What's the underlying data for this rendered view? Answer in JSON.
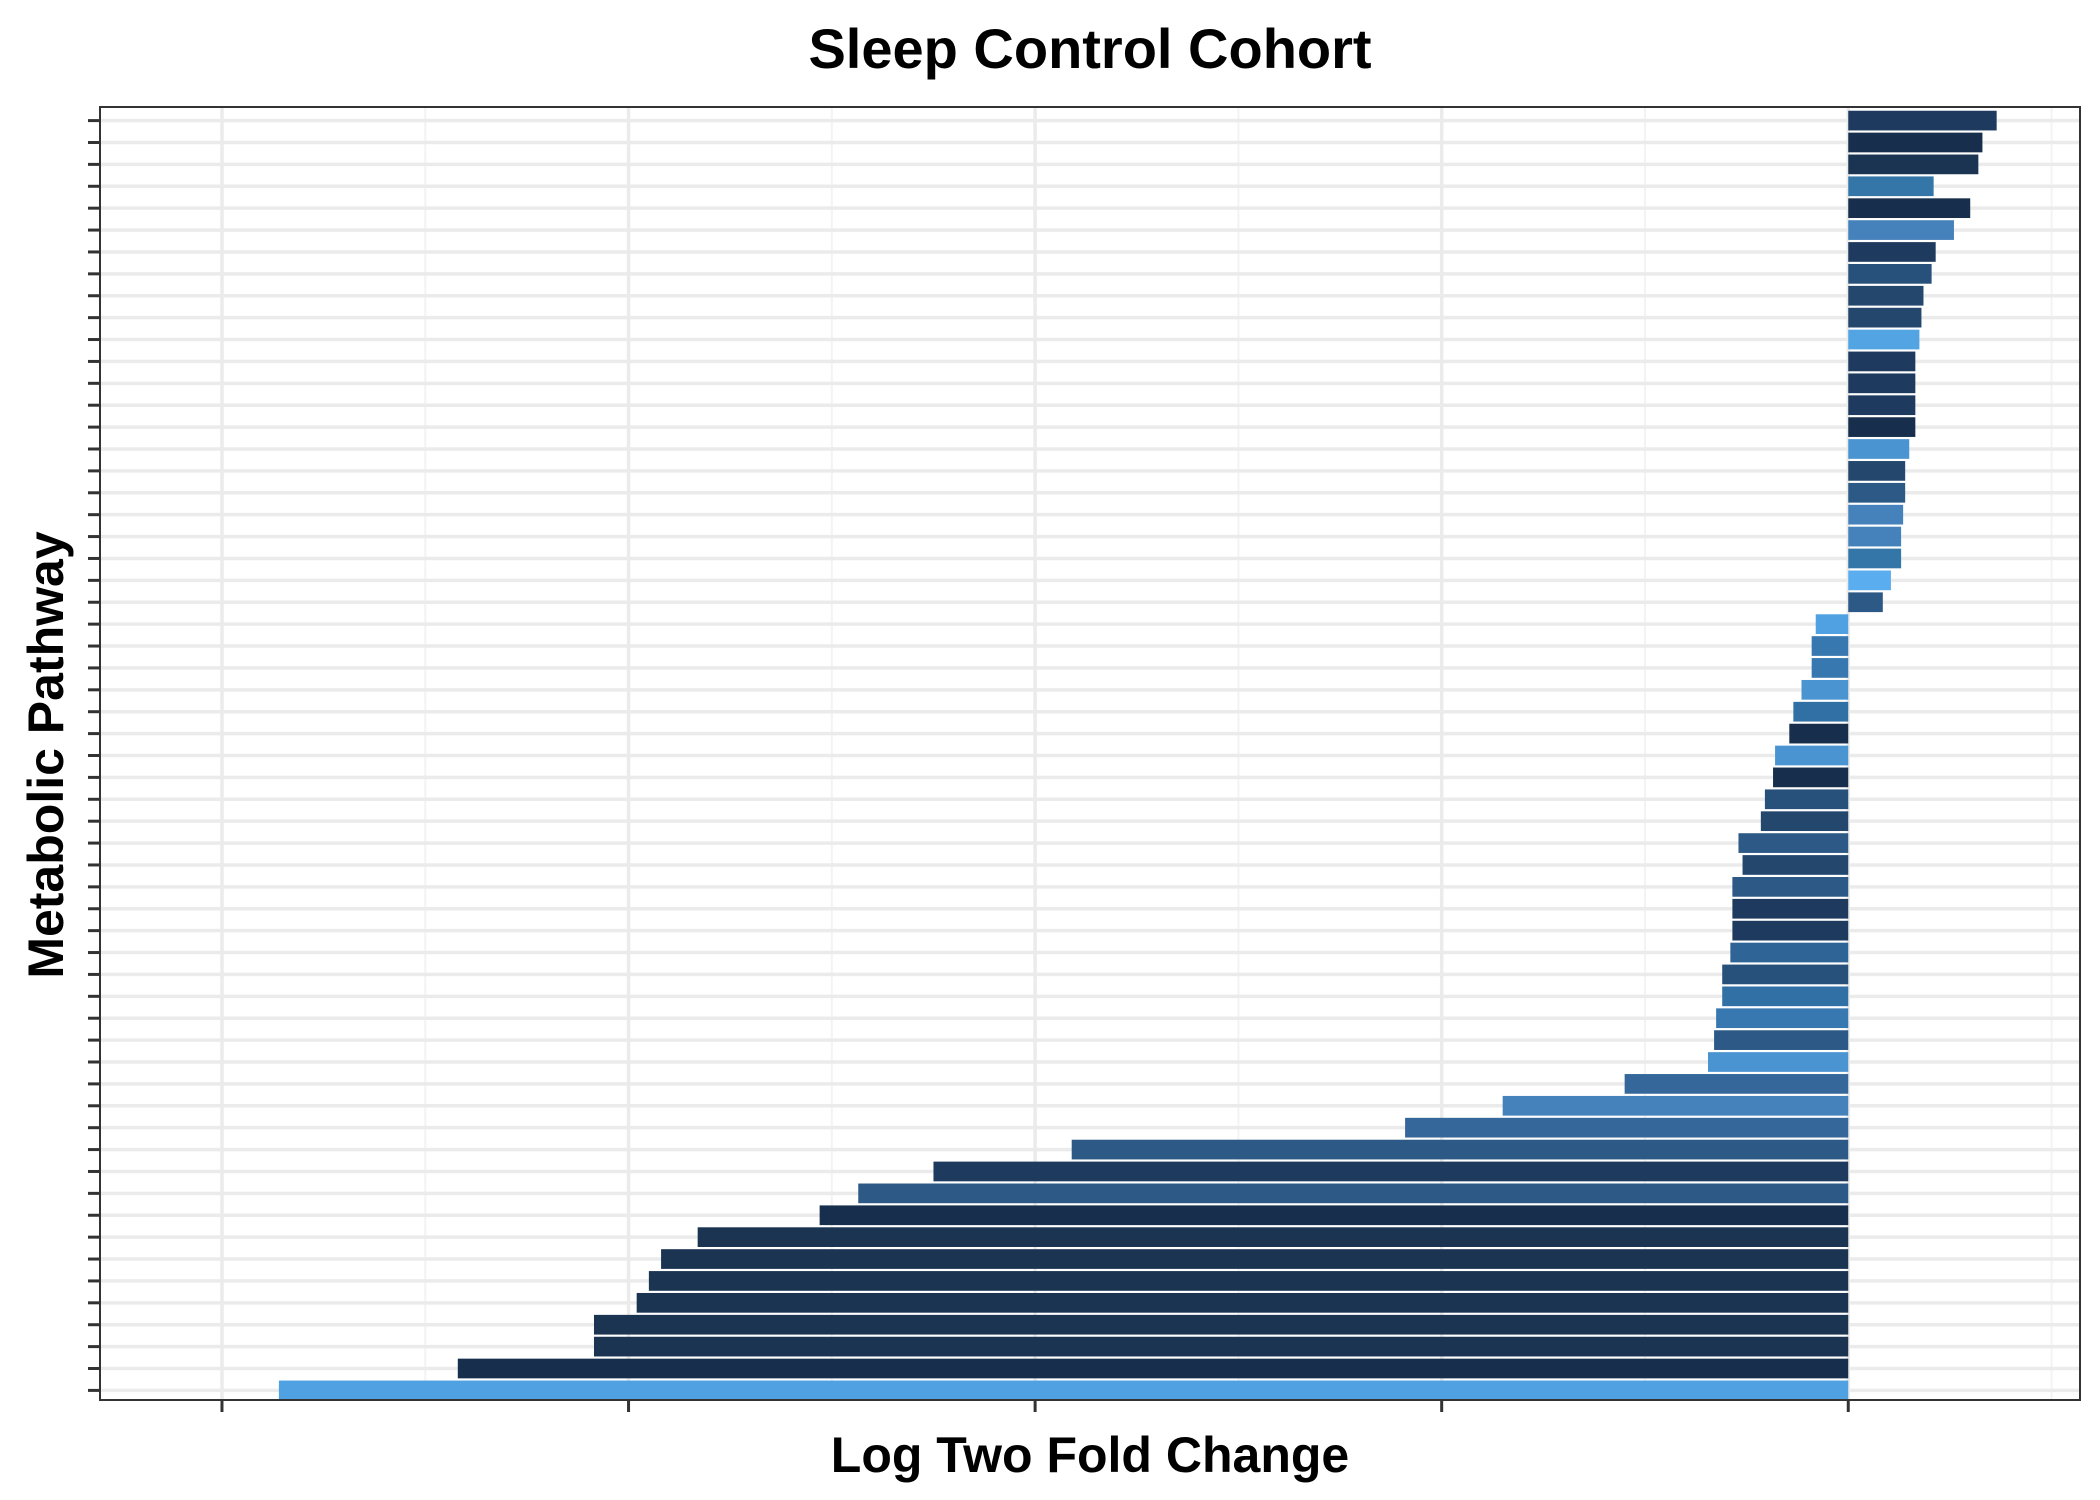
{
  "chart_data": {
    "type": "bar",
    "orientation": "horizontal",
    "title": "Sleep Control Cohort",
    "xlabel": "Log Two Fold Change",
    "ylabel": "Metabolic Pathway",
    "xlim": [
      -8.6,
      1.14
    ],
    "grid": true,
    "legend": "none",
    "values": [
      0.73,
      0.66,
      0.64,
      0.42,
      0.6,
      0.52,
      0.43,
      0.41,
      0.37,
      0.36,
      0.35,
      0.33,
      0.33,
      0.33,
      0.33,
      0.3,
      0.28,
      0.28,
      0.27,
      0.26,
      0.26,
      0.21,
      0.17,
      -0.16,
      -0.18,
      -0.18,
      -0.23,
      -0.27,
      -0.29,
      -0.36,
      -0.37,
      -0.41,
      -0.43,
      -0.54,
      -0.52,
      -0.57,
      -0.57,
      -0.57,
      -0.58,
      -0.62,
      -0.62,
      -0.65,
      -0.66,
      -0.69,
      -1.1,
      -1.7,
      -2.18,
      -3.82,
      -4.5,
      -4.87,
      -5.06,
      -5.66,
      -5.84,
      -5.9,
      -5.96,
      -6.17,
      -6.17,
      -6.84,
      -7.72
    ],
    "colors": [
      "#1e3a5f",
      "#172f4c",
      "#1a3452",
      "#3576a8",
      "#172f4c",
      "#4582bb",
      "#1e3a5f",
      "#27517a",
      "#23476d",
      "#23476d",
      "#52a4e3",
      "#1e3a5f",
      "#1e3a5f",
      "#1e3a5f",
      "#172f4c",
      "#4a94d1",
      "#23476d",
      "#2c5985",
      "#4582bb",
      "#4582bb",
      "#3576a8",
      "#5aaef0",
      "#2c5985",
      "#4fa1e2",
      "#3878b0",
      "#3878b0",
      "#4a94d1",
      "#3070a5",
      "#172f4c",
      "#4a94d1",
      "#172f4c",
      "#27517a",
      "#23476d",
      "#2c5985",
      "#23476d",
      "#2c5985",
      "#1e3a5f",
      "#1e3a5f",
      "#2f6596",
      "#27517a",
      "#3070a5",
      "#3878b0",
      "#2c5985",
      "#4a94d1",
      "#36679a",
      "#4582bb",
      "#36679a",
      "#2c5985",
      "#1e3a5f",
      "#2c5985",
      "#172f4c",
      "#1a3452",
      "#1a3452",
      "#1a3452",
      "#1a3452",
      "#1a3452",
      "#1a3452",
      "#172f4c",
      "#4fa1e2"
    ]
  }
}
